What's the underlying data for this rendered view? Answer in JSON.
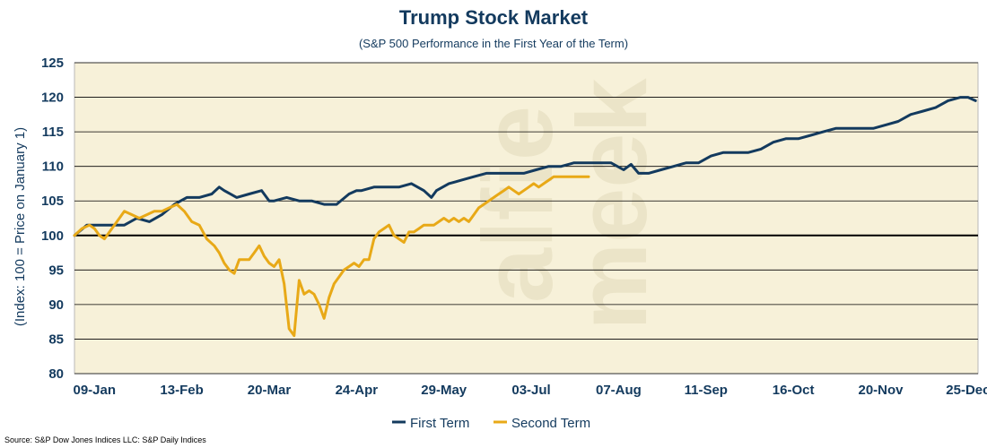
{
  "chart_data": {
    "type": "line",
    "title": "Trump Stock Market",
    "subtitle": "(S&P 500 Performance in the First Year of the Term)",
    "ylabel": "(Index: 100 = Price on January 1)",
    "xlabel": "",
    "ylim": [
      80,
      125
    ],
    "yticks": [
      80,
      85,
      90,
      95,
      100,
      105,
      110,
      115,
      120,
      125
    ],
    "xlim": [
      0,
      362
    ],
    "xticks": [
      {
        "label": "09-Jan",
        "day": 8
      },
      {
        "label": "13-Feb",
        "day": 43
      },
      {
        "label": "20-Mar",
        "day": 78
      },
      {
        "label": "24-Apr",
        "day": 113
      },
      {
        "label": "29-May",
        "day": 148
      },
      {
        "label": "03-Jul",
        "day": 183
      },
      {
        "label": "07-Aug",
        "day": 218
      },
      {
        "label": "11-Sep",
        "day": 253
      },
      {
        "label": "16-Oct",
        "day": 288
      },
      {
        "label": "20-Nov",
        "day": 323
      },
      {
        "label": "25-Dec",
        "day": 358
      }
    ],
    "grid": true,
    "reference_line": 100,
    "legend_position": "bottom",
    "series": [
      {
        "name": "First Term",
        "color": "#133a5e",
        "x": [
          0,
          5,
          10,
          15,
          20,
          25,
          30,
          35,
          40,
          45,
          50,
          55,
          58,
          60,
          65,
          70,
          75,
          78,
          80,
          85,
          90,
          95,
          100,
          105,
          110,
          113,
          115,
          120,
          125,
          130,
          135,
          140,
          143,
          145,
          150,
          155,
          160,
          165,
          170,
          175,
          180,
          185,
          190,
          195,
          200,
          205,
          210,
          215,
          220,
          223,
          226,
          230,
          235,
          240,
          245,
          250,
          255,
          260,
          265,
          270,
          275,
          280,
          285,
          290,
          295,
          300,
          305,
          310,
          315,
          320,
          325,
          330,
          335,
          340,
          345,
          350,
          355,
          358,
          361
        ],
        "y": [
          100,
          101.5,
          101.5,
          101.5,
          101.5,
          102.5,
          102,
          103,
          104.5,
          105.5,
          105.5,
          106,
          107,
          106.5,
          105.5,
          106,
          106.5,
          105,
          105,
          105.5,
          105,
          105,
          104.5,
          104.5,
          106,
          106.5,
          106.5,
          107,
          107,
          107,
          107.5,
          106.5,
          105.5,
          106.5,
          107.5,
          108,
          108.5,
          109,
          109,
          109,
          109,
          109.5,
          110,
          110,
          110.5,
          110.5,
          110.5,
          110.5,
          109.5,
          110.3,
          109,
          109,
          109.5,
          110,
          110.5,
          110.5,
          111.5,
          112,
          112,
          112,
          112.5,
          113.5,
          114,
          114,
          114.5,
          115,
          115.5,
          115.5,
          115.5,
          115.5,
          116,
          116.5,
          117.5,
          118,
          118.5,
          119.5,
          120,
          120,
          119.5
        ]
      },
      {
        "name": "Second Term",
        "color": "#e8a917",
        "x": [
          0,
          3,
          6,
          8,
          10,
          12,
          15,
          18,
          20,
          23,
          26,
          29,
          32,
          35,
          38,
          41,
          44,
          47,
          50,
          53,
          56,
          58,
          60,
          62,
          64,
          66,
          68,
          70,
          72,
          74,
          76,
          78,
          80,
          82,
          84,
          86,
          88,
          90,
          92,
          94,
          96,
          98,
          99,
          100,
          101,
          102,
          104,
          106,
          108,
          110,
          112,
          114,
          116,
          118,
          120,
          122,
          124,
          126,
          128,
          130,
          132,
          134,
          136,
          138,
          140,
          142,
          144,
          146,
          148,
          150,
          152,
          154,
          156,
          158,
          160,
          162,
          164,
          166,
          168,
          170,
          172,
          174,
          176,
          178,
          180,
          182,
          184,
          186,
          188,
          190,
          192,
          194,
          196,
          198,
          200,
          202,
          204,
          206
        ],
        "y": [
          100,
          101,
          101.5,
          101,
          100,
          99.5,
          101,
          102.5,
          103.5,
          103,
          102.5,
          103,
          103.5,
          103.5,
          104,
          104.5,
          103.5,
          102,
          101.5,
          99.5,
          98.5,
          97.5,
          96,
          95,
          94.5,
          96.5,
          96.5,
          96.5,
          97.5,
          98.5,
          97,
          96,
          95.5,
          96.5,
          93,
          86.5,
          85.5,
          93.5,
          91.5,
          92,
          91.5,
          90,
          89,
          88,
          89.5,
          91,
          93,
          94,
          95,
          95.5,
          96,
          95.5,
          96.5,
          96.5,
          99.5,
          100.5,
          101,
          101.5,
          100,
          99.5,
          99,
          100.5,
          100.5,
          101,
          101.5,
          101.5,
          101.5,
          102,
          102.5,
          102,
          102.5,
          102,
          102.5,
          102,
          103,
          104,
          104.5,
          105,
          105.5,
          106,
          106.5,
          107,
          106.5,
          106,
          106.5,
          107,
          107.5,
          107,
          107.5,
          108,
          108.5,
          108.5,
          108.5,
          108.5,
          108.5,
          108.5,
          108.5,
          108.5
        ]
      }
    ]
  },
  "source_note": "Source: S&P Dow Jones Indices LLC: S&P Daily Indices",
  "watermark": {
    "line1": "alfie",
    "line2": "meek"
  }
}
